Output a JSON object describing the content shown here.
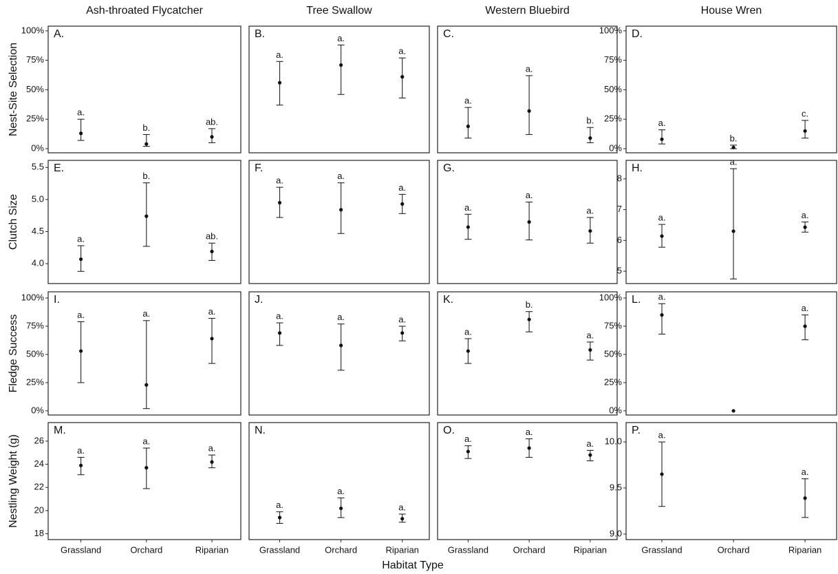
{
  "categories": [
    "Grassland",
    "Orchard",
    "Riparian"
  ],
  "xlabel": "Habitat Type",
  "chart_data": [
    {
      "type": "errorbar",
      "title": "Ash-throated Flycatcher",
      "ylabel": "Nest-Site Selection",
      "label": "A.",
      "values": [
        13,
        4,
        10
      ],
      "error_low": [
        7,
        2,
        5
      ],
      "error_high": [
        25,
        12,
        17
      ],
      "sig_labels": [
        "a.",
        "b.",
        "ab."
      ],
      "ylim": [
        -3.5,
        104
      ],
      "yticks": [
        {
          "value": 0,
          "label": "0%"
        },
        {
          "value": 25,
          "label": "25%"
        },
        {
          "value": 50,
          "label": "50%"
        },
        {
          "value": 75,
          "label": "75%"
        },
        {
          "value": 100,
          "label": "100%"
        }
      ]
    },
    {
      "type": "errorbar",
      "title": "Tree Swallow",
      "label": "B.",
      "values": [
        56,
        71,
        61
      ],
      "error_low": [
        37,
        46,
        43
      ],
      "error_high": [
        74,
        88,
        77
      ],
      "sig_labels": [
        "a.",
        "a.",
        "a."
      ],
      "ylim": [
        -3.5,
        104
      ]
    },
    {
      "type": "errorbar",
      "title": "Western Bluebird",
      "label": "C.",
      "values": [
        19,
        32,
        9
      ],
      "error_low": [
        9,
        12,
        5
      ],
      "error_high": [
        35,
        62,
        18
      ],
      "sig_labels": [
        "a.",
        "a.",
        "b."
      ],
      "ylim": [
        -3.5,
        104
      ]
    },
    {
      "type": "errorbar",
      "title": "House Wren",
      "label": "D.",
      "values": [
        8,
        1,
        15
      ],
      "error_low": [
        4,
        0,
        9
      ],
      "error_high": [
        16,
        3,
        24
      ],
      "sig_labels": [
        "a.",
        "b.",
        "c."
      ],
      "ylim": [
        -3.5,
        104
      ],
      "yticks": [
        {
          "value": 0,
          "label": "0%"
        },
        {
          "value": 25,
          "label": "25%"
        },
        {
          "value": 50,
          "label": "50%"
        },
        {
          "value": 75,
          "label": "75%"
        },
        {
          "value": 100,
          "label": "100%"
        }
      ]
    },
    {
      "type": "errorbar",
      "ylabel": "Clutch Size",
      "label": "E.",
      "values": [
        4.07,
        4.74,
        4.19
      ],
      "error_low": [
        3.88,
        4.27,
        4.05
      ],
      "error_high": [
        4.28,
        5.26,
        4.32
      ],
      "sig_labels": [
        "a.",
        "b.",
        "ab."
      ],
      "ylim": [
        3.69,
        5.61
      ],
      "yticks": [
        {
          "value": 4,
          "label": "4.0"
        },
        4.5,
        {
          "value": 5,
          "label": "5.0"
        },
        5.5
      ]
    },
    {
      "type": "errorbar",
      "label": "F.",
      "values": [
        4.95,
        4.84,
        4.93
      ],
      "error_low": [
        4.72,
        4.47,
        4.78
      ],
      "error_high": [
        5.19,
        5.26,
        5.08
      ],
      "sig_labels": [
        "a.",
        "a.",
        "a."
      ],
      "ylim": [
        3.69,
        5.61
      ]
    },
    {
      "type": "errorbar",
      "label": "G.",
      "values": [
        4.57,
        4.65,
        4.51
      ],
      "error_low": [
        4.38,
        4.37,
        4.32
      ],
      "error_high": [
        4.77,
        4.96,
        4.72
      ],
      "sig_labels": [
        "a.",
        "a.",
        "a."
      ],
      "ylim": [
        3.69,
        5.61
      ]
    },
    {
      "type": "errorbar",
      "label": "H.",
      "values": [
        6.14,
        6.3,
        6.43
      ],
      "error_low": [
        5.78,
        4.75,
        6.27
      ],
      "error_high": [
        6.52,
        8.33,
        6.6
      ],
      "sig_labels": [
        "a.",
        "a.",
        "a."
      ],
      "ylim": [
        4.6,
        8.6
      ],
      "yticks": [
        5,
        6,
        7,
        8
      ]
    },
    {
      "type": "errorbar",
      "ylabel": "Fledge Success",
      "label": "I.",
      "values": [
        53,
        23,
        64
      ],
      "error_low": [
        25,
        2,
        42
      ],
      "error_high": [
        79,
        80,
        82
      ],
      "sig_labels": [
        "a.",
        "a.",
        "a."
      ],
      "ylim": [
        -3.7,
        105.5
      ],
      "yticks": [
        {
          "value": 0,
          "label": "0%"
        },
        {
          "value": 25,
          "label": "25%"
        },
        {
          "value": 50,
          "label": "50%"
        },
        {
          "value": 75,
          "label": "75%"
        },
        {
          "value": 100,
          "label": "100%"
        }
      ]
    },
    {
      "type": "errorbar",
      "label": "J.",
      "values": [
        69,
        58,
        69
      ],
      "error_low": [
        58,
        36,
        62
      ],
      "error_high": [
        78,
        77,
        75
      ],
      "sig_labels": [
        "a.",
        "a.",
        "a."
      ],
      "ylim": [
        -3.7,
        105.5
      ]
    },
    {
      "type": "errorbar",
      "label": "K.",
      "values": [
        53,
        81,
        54
      ],
      "error_low": [
        42,
        70,
        45
      ],
      "error_high": [
        64,
        88,
        61
      ],
      "sig_labels": [
        "a.",
        "b.",
        "a."
      ],
      "ylim": [
        -3.7,
        105.5
      ]
    },
    {
      "type": "errorbar",
      "label": "L.",
      "values": [
        85,
        0,
        75
      ],
      "error_low": [
        68,
        null,
        63
      ],
      "error_high": [
        95,
        null,
        85
      ],
      "sig_labels": [
        "a.",
        null,
        "a."
      ],
      "ylim": [
        -3.7,
        105.5
      ],
      "yticks": [
        {
          "value": 0,
          "label": "0%"
        },
        {
          "value": 25,
          "label": "25%"
        },
        {
          "value": 50,
          "label": "50%"
        },
        {
          "value": 75,
          "label": "75%"
        },
        {
          "value": 100,
          "label": "100%"
        }
      ]
    },
    {
      "type": "errorbar",
      "ylabel": "Nestling Weight (g)",
      "label": "M.",
      "values": [
        23.9,
        23.7,
        24.2
      ],
      "error_low": [
        23.1,
        21.9,
        23.7
      ],
      "error_high": [
        24.6,
        25.4,
        24.8
      ],
      "sig_labels": [
        "a.",
        "a.",
        "a."
      ],
      "ylim": [
        17.5,
        27.6
      ],
      "yticks": [
        18,
        20,
        22,
        24,
        26
      ]
    },
    {
      "type": "errorbar",
      "label": "N.",
      "values": [
        19.4,
        20.2,
        19.3
      ],
      "error_low": [
        18.9,
        19.4,
        19.0
      ],
      "error_high": [
        19.9,
        21.1,
        19.7
      ],
      "sig_labels": [
        "a.",
        "a.",
        "a."
      ],
      "ylim": [
        17.5,
        27.6
      ]
    },
    {
      "type": "errorbar",
      "label": "O.",
      "values": [
        25.1,
        25.4,
        24.8
      ],
      "error_low": [
        24.5,
        24.6,
        24.3
      ],
      "error_high": [
        25.6,
        26.2,
        25.2
      ],
      "sig_labels": [
        "a.",
        "a.",
        "a."
      ],
      "ylim": [
        17.5,
        27.6
      ]
    },
    {
      "type": "errorbar",
      "label": "P.",
      "values": [
        9.65,
        null,
        9.39
      ],
      "error_low": [
        9.3,
        null,
        9.18
      ],
      "error_high": [
        10.0,
        null,
        9.6
      ],
      "sig_labels": [
        "a.",
        null,
        "a."
      ],
      "ylim": [
        8.94,
        10.21
      ],
      "yticks": [
        {
          "value": 9,
          "label": "9.0"
        },
        9.5,
        {
          "value": 10,
          "label": "10.0"
        }
      ]
    }
  ]
}
